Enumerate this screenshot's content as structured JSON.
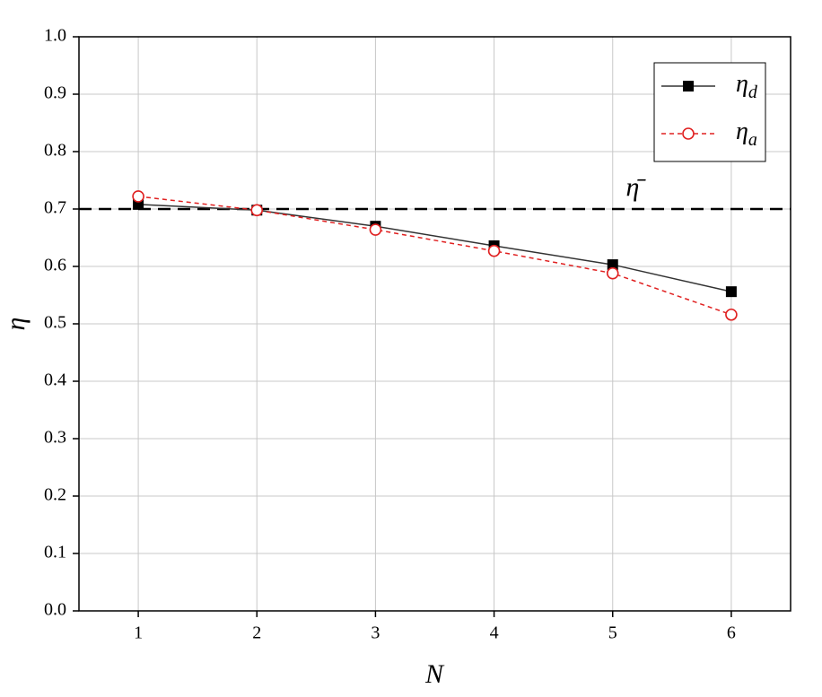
{
  "chart_data": {
    "type": "line",
    "x_label": "N",
    "y_label": "η",
    "x": [
      1,
      2,
      3,
      4,
      5,
      6
    ],
    "series": [
      {
        "name": "ηd",
        "color": "#000000",
        "line_color": "#333333",
        "marker": "square",
        "dash": false,
        "values": [
          0.708,
          0.698,
          0.67,
          0.636,
          0.603,
          0.556
        ]
      },
      {
        "name": "ηa",
        "color": "#e02020",
        "line_color": "#e02020",
        "marker": "circle",
        "dash": true,
        "values": [
          0.722,
          0.698,
          0.664,
          0.627,
          0.588,
          0.516
        ]
      }
    ],
    "reference_line": {
      "value": 0.7,
      "label": "η̄",
      "color": "#000000"
    },
    "xlim": [
      0.5,
      6.5
    ],
    "xticks": [
      1,
      2,
      3,
      4,
      5,
      6
    ],
    "ylim": [
      0,
      1
    ],
    "yticks": [
      {
        "value": 0,
        "label": "0.0"
      },
      0.1,
      0.2,
      0.3,
      0.4,
      0.5,
      0.6,
      0.7,
      0.8,
      0.9,
      {
        "value": 1,
        "label": "1.0"
      }
    ],
    "grid": true,
    "legend": "upper right"
  }
}
